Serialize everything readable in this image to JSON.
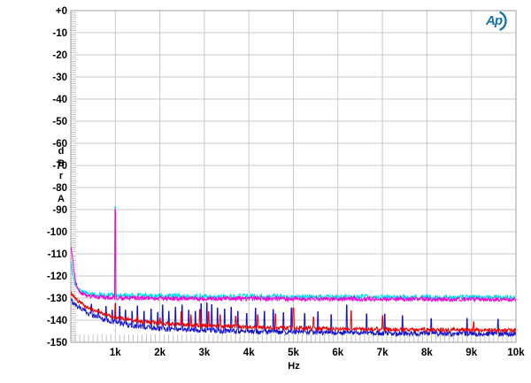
{
  "logo": {
    "text": "Ap",
    "icon": "audio-precision-logo",
    "color": "#1272b2"
  },
  "colors": {
    "grid": "#c9c9c9",
    "minor_tick": "#c6c6c6",
    "border": "#9f9f9f",
    "text": "#000000",
    "background": "#ffffff"
  },
  "chart_data": {
    "type": "line",
    "title": "",
    "xlabel": "Hz",
    "ylabel": "dBr A",
    "ylabel_stacked": "d\nB\nr",
    "ylabel_sub": "A",
    "xlim": [
      0,
      10000
    ],
    "ylim": [
      -150,
      0
    ],
    "grid": true,
    "legend": "none",
    "x_tick_values": [
      1000,
      2000,
      3000,
      4000,
      5000,
      6000,
      7000,
      8000,
      9000,
      10000
    ],
    "x_tick_labels": [
      "1k",
      "2k",
      "3k",
      "4k",
      "5k",
      "6k",
      "7k",
      "8k",
      "9k",
      "10k"
    ],
    "y_tick_values": [
      0,
      -10,
      -20,
      -30,
      -40,
      -50,
      -60,
      -70,
      -80,
      -90,
      -100,
      -110,
      -120,
      -130,
      -140,
      -150
    ],
    "y_tick_labels": [
      "+0",
      "-10",
      "-20",
      "-30",
      "-40",
      "-50",
      "-60",
      "-70",
      "-80",
      "-90",
      "-100",
      "-110",
      "-120",
      "-130",
      "-140",
      "-150"
    ],
    "x_minor_tick_step_hz": 100,
    "y_minor_tick_step_db": 1,
    "annotations": {
      "fundamental_spike_hz": 1000,
      "fundamental_spike_db": -90,
      "left_edge_peak_db": -106
    },
    "series": [
      {
        "name": "noise-floor-blue",
        "color": "#1212cc",
        "jitter": 1.15,
        "baseline": [
          [
            0,
            -131
          ],
          [
            50,
            -132
          ],
          [
            100,
            -133
          ],
          [
            200,
            -134.2
          ],
          [
            350,
            -136.3
          ],
          [
            500,
            -137.8
          ],
          [
            700,
            -139.3
          ],
          [
            1000,
            -141
          ],
          [
            1400,
            -142.6
          ],
          [
            2000,
            -143.7
          ],
          [
            3000,
            -144.6
          ],
          [
            4000,
            -145.1
          ],
          [
            5000,
            -145.4
          ],
          [
            6500,
            -145.8
          ],
          [
            8000,
            -146
          ],
          [
            10000,
            -146.2
          ]
        ],
        "spikes": [
          [
            460,
            -132.8
          ],
          [
            620,
            -135
          ],
          [
            790,
            -133.8
          ],
          [
            930,
            -135.5
          ],
          [
            1000,
            -136.5
          ],
          [
            1100,
            -133.8
          ],
          [
            1230,
            -135.5
          ],
          [
            1380,
            -136
          ],
          [
            1500,
            -133.6
          ],
          [
            1650,
            -136
          ],
          [
            1800,
            -135
          ],
          [
            1950,
            -136.5
          ],
          [
            2060,
            -133.2
          ],
          [
            2200,
            -136
          ],
          [
            2350,
            -134.2
          ],
          [
            2500,
            -133.2
          ],
          [
            2650,
            -135.5
          ],
          [
            2800,
            -136
          ],
          [
            2930,
            -132.6
          ],
          [
            3060,
            -132.2
          ],
          [
            3170,
            -133
          ],
          [
            3300,
            -134.5
          ],
          [
            3450,
            -135
          ],
          [
            3600,
            -134.2
          ],
          [
            3750,
            -136
          ],
          [
            3950,
            -137
          ],
          [
            4150,
            -134.6
          ],
          [
            4350,
            -136
          ],
          [
            4550,
            -135.2
          ],
          [
            4780,
            -136.6
          ],
          [
            4960,
            -134.5
          ],
          [
            5250,
            -137
          ],
          [
            5550,
            -136.2
          ],
          [
            5850,
            -137.5
          ],
          [
            6200,
            -133.2
          ],
          [
            6650,
            -137.2
          ],
          [
            7050,
            -137.3
          ],
          [
            7450,
            -138
          ],
          [
            8100,
            -139.3
          ],
          [
            8900,
            -139.2
          ],
          [
            9600,
            -139.6
          ]
        ]
      },
      {
        "name": "noise-floor-red",
        "color": "#ee0000",
        "jitter": 0.9,
        "baseline": [
          [
            0,
            -127.5
          ],
          [
            50,
            -129
          ],
          [
            100,
            -130.3
          ],
          [
            200,
            -131.8
          ],
          [
            350,
            -133.8
          ],
          [
            500,
            -135.3
          ],
          [
            700,
            -136.8
          ],
          [
            1000,
            -138.6
          ],
          [
            1400,
            -140.2
          ],
          [
            2000,
            -141.4
          ],
          [
            3000,
            -142.5
          ],
          [
            4000,
            -143.1
          ],
          [
            5000,
            -143.5
          ],
          [
            6500,
            -144
          ],
          [
            8000,
            -144.3
          ],
          [
            10000,
            -144.6
          ]
        ],
        "spikes": [
          [
            1000,
            -132.5
          ],
          [
            1500,
            -138.2
          ],
          [
            2000,
            -139
          ],
          [
            2480,
            -136.2
          ],
          [
            2700,
            -137.6
          ],
          [
            2900,
            -135.2
          ],
          [
            3100,
            -136.2
          ],
          [
            3350,
            -137.6
          ],
          [
            3700,
            -138.2
          ],
          [
            4200,
            -137.6
          ],
          [
            4600,
            -137.2
          ],
          [
            5000,
            -134.5
          ],
          [
            5450,
            -138.6
          ],
          [
            6300,
            -135.8
          ],
          [
            7000,
            -138
          ],
          [
            9050,
            -140.8
          ]
        ]
      },
      {
        "name": "noise-floor-cyan",
        "color": "#00dcee",
        "jitter": 1.2,
        "baseline": [
          [
            0,
            -113
          ],
          [
            40,
            -119
          ],
          [
            90,
            -123.5
          ],
          [
            160,
            -126.3
          ],
          [
            300,
            -127.8
          ],
          [
            600,
            -128.6
          ],
          [
            1200,
            -129
          ],
          [
            3000,
            -129.2
          ],
          [
            6000,
            -129.5
          ],
          [
            10000,
            -129.8
          ]
        ],
        "spikes": [
          [
            1000,
            -88.6
          ]
        ]
      },
      {
        "name": "noise-floor-magenta",
        "color": "#ff00d2",
        "jitter": 1.0,
        "baseline": [
          [
            0,
            -106.5
          ],
          [
            30,
            -111
          ],
          [
            70,
            -118
          ],
          [
            120,
            -124
          ],
          [
            200,
            -127.5
          ],
          [
            350,
            -128.8
          ],
          [
            600,
            -129.5
          ],
          [
            1200,
            -130
          ],
          [
            3000,
            -130.2
          ],
          [
            6000,
            -130.4
          ],
          [
            10000,
            -130.6
          ]
        ],
        "spikes": [
          [
            1000,
            -90
          ]
        ]
      }
    ]
  }
}
